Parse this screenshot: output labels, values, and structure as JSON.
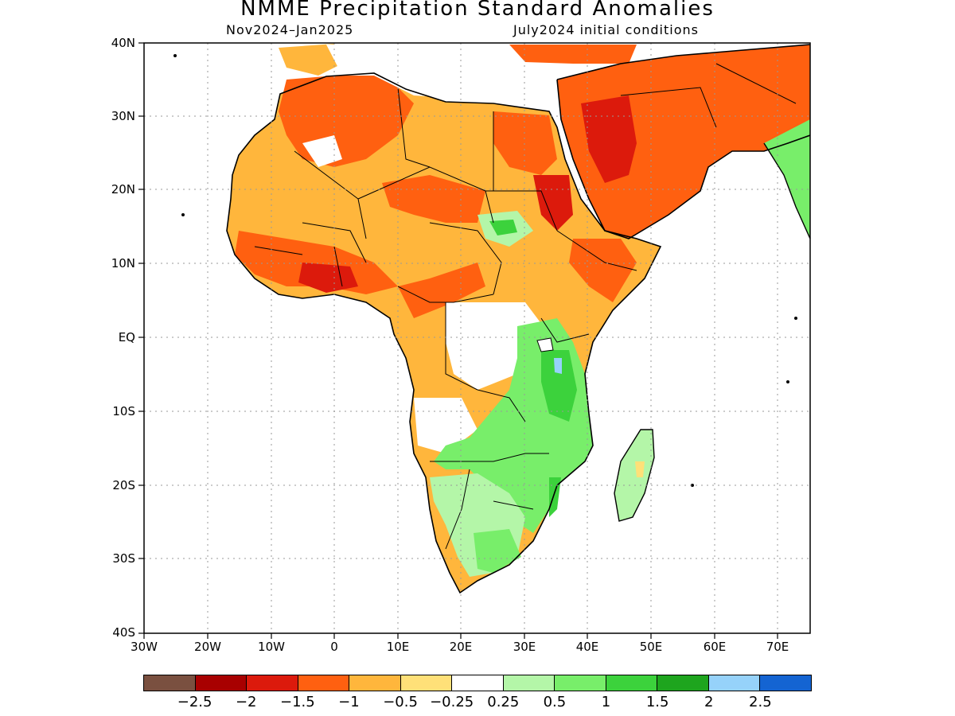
{
  "title": "NMME Precipitation Standard Anomalies",
  "period": "Nov2024–Jan2025",
  "initial": "July2024 initial conditions",
  "lat_labels": [
    "40N",
    "30N",
    "20N",
    "10N",
    "EQ",
    "10S",
    "20S",
    "30S",
    "40S"
  ],
  "lon_labels": [
    "30W",
    "20W",
    "10W",
    "0",
    "10E",
    "20E",
    "30E",
    "40E",
    "50E",
    "60E",
    "70E"
  ],
  "legend": {
    "colors": [
      "#7a5040",
      "#a80000",
      "#dc1a0c",
      "#ff6010",
      "#ffb63c",
      "#ffe078",
      "#ffffff",
      "#b4f6a8",
      "#78ee6a",
      "#3cd23c",
      "#1ea51e",
      "#96d2fa",
      "#1464d2"
    ],
    "labels": [
      "−2.5",
      "−2",
      "−1.5",
      "−1",
      "−0.5",
      "−0.25",
      "0.25",
      "0.5",
      "1",
      "1.5",
      "2",
      "2.5"
    ]
  }
}
